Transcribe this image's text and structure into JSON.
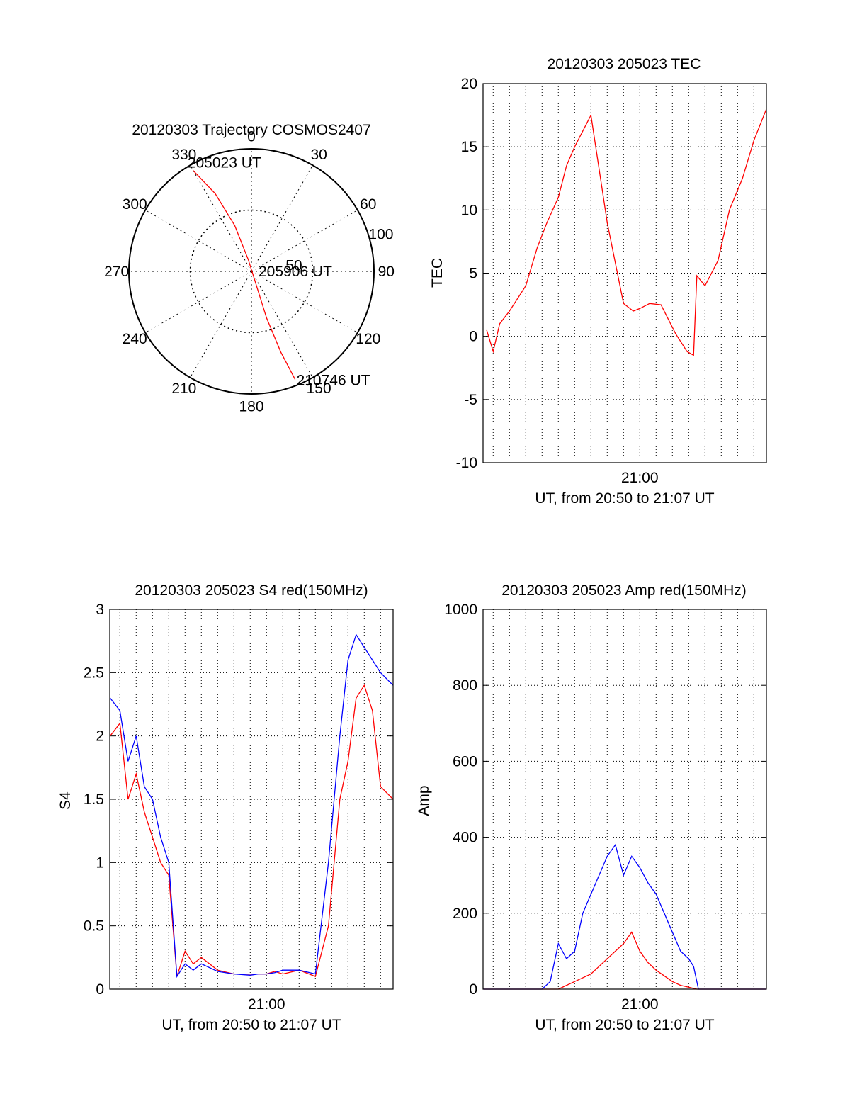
{
  "chart_data": [
    {
      "id": "polar",
      "type": "polar",
      "title": "20120303 Trajectory COSMOS2407",
      "angle_labels": [
        "0",
        "30",
        "60",
        "90",
        "120",
        "150",
        "180",
        "210",
        "240",
        "270",
        "300",
        "330"
      ],
      "radius_labels": [
        "50",
        "100"
      ],
      "r_max": 100,
      "series": [
        {
          "name": "trajectory",
          "color": "#ff0000",
          "points": [
            [
              -30,
              95
            ],
            [
              -25,
              70
            ],
            [
              -20,
              40
            ],
            [
              -15,
              10
            ],
            [
              160,
              10
            ],
            [
              162,
              40
            ],
            [
              160,
              70
            ],
            [
              158,
              95
            ]
          ]
        }
      ],
      "annotations": [
        {
          "text": "205023 UT",
          "at": [
            -30,
            95
          ]
        },
        {
          "text": "205906 UT",
          "at": [
            0,
            0
          ]
        },
        {
          "text": "210746 UT",
          "at": [
            158,
            95
          ]
        }
      ]
    },
    {
      "id": "tec",
      "type": "line",
      "title": "20120303 205023 TEC",
      "xlabel": "UT, from 20:50 to 21:07 UT",
      "ylabel": "TEC",
      "xlim": [
        50.38,
        67.77
      ],
      "ylim": [
        -10,
        20
      ],
      "yticks": [
        "-10",
        "-5",
        "0",
        "5",
        "10",
        "15",
        "20"
      ],
      "xticks": [
        {
          "value": 60,
          "label": "21:00"
        }
      ],
      "series": [
        {
          "name": "TEC",
          "color": "#ff0000",
          "x": [
            50.6,
            51.0,
            51.4,
            52.0,
            52.5,
            53.0,
            53.7,
            54.3,
            55.0,
            55.5,
            56.0,
            57.0,
            58.0,
            59.0,
            59.6,
            60.0,
            60.6,
            61.3,
            62.2,
            62.9,
            63.3,
            63.5,
            64.0,
            64.8,
            65.5,
            66.3,
            67.0,
            67.77
          ],
          "y": [
            0.5,
            -1.2,
            1.0,
            2.0,
            3.0,
            4.0,
            7.0,
            9.0,
            11.0,
            13.5,
            15.0,
            17.5,
            9.0,
            2.6,
            2.0,
            2.2,
            2.6,
            2.5,
            0.2,
            -1.2,
            -1.5,
            4.8,
            4.0,
            6.0,
            10.0,
            12.5,
            15.5,
            18.0
          ]
        }
      ]
    },
    {
      "id": "s4",
      "type": "line",
      "title": "20120303 205023 S4 red(150MHz)",
      "xlabel": "UT, from 20:50 to 21:07 UT",
      "ylabel": "S4",
      "xlim": [
        50.38,
        67.77
      ],
      "ylim": [
        0,
        3
      ],
      "yticks": [
        "0",
        "0.5",
        "1",
        "1.5",
        "2",
        "2.5",
        "3"
      ],
      "xticks": [
        {
          "value": 60,
          "label": "21:00"
        }
      ],
      "series": [
        {
          "name": "red",
          "color": "#ff0000",
          "x": [
            50.4,
            51.0,
            51.5,
            52.0,
            52.5,
            53.0,
            53.5,
            54.0,
            54.5,
            55.0,
            55.5,
            56.0,
            57.0,
            58.0,
            59.0,
            59.5,
            60.0,
            60.5,
            61.0,
            62.0,
            63.0,
            63.8,
            64.5,
            65.0,
            65.5,
            66.0,
            66.5,
            67.0,
            67.77
          ],
          "y": [
            2.0,
            2.1,
            1.5,
            1.7,
            1.4,
            1.2,
            1.0,
            0.9,
            0.1,
            0.3,
            0.2,
            0.25,
            0.15,
            0.12,
            0.12,
            0.12,
            0.12,
            0.14,
            0.12,
            0.15,
            0.1,
            0.5,
            1.5,
            1.8,
            2.3,
            2.4,
            2.2,
            1.6,
            1.5
          ]
        },
        {
          "name": "blue",
          "color": "#0000ff",
          "x": [
            50.4,
            51.0,
            51.5,
            52.0,
            52.5,
            53.0,
            53.5,
            54.0,
            54.5,
            55.0,
            55.5,
            56.0,
            57.0,
            58.0,
            59.0,
            59.5,
            60.0,
            60.5,
            61.0,
            62.0,
            63.0,
            63.8,
            64.5,
            65.0,
            65.5,
            66.0,
            66.5,
            67.0,
            67.77
          ],
          "y": [
            2.3,
            2.2,
            1.8,
            2.0,
            1.6,
            1.5,
            1.2,
            1.0,
            0.1,
            0.2,
            0.15,
            0.2,
            0.14,
            0.12,
            0.11,
            0.12,
            0.12,
            0.13,
            0.15,
            0.15,
            0.12,
            1.0,
            2.0,
            2.6,
            2.8,
            2.7,
            2.6,
            2.5,
            2.4
          ]
        }
      ]
    },
    {
      "id": "amp",
      "type": "line",
      "title": "20120303 205023 Amp red(150MHz)",
      "xlabel": "UT, from 20:50 to 21:07 UT",
      "ylabel": "Amp",
      "xlim": [
        50.38,
        67.77
      ],
      "ylim": [
        0,
        1000
      ],
      "yticks": [
        "0",
        "200",
        "400",
        "600",
        "800",
        "1000"
      ],
      "xticks": [
        {
          "value": 60,
          "label": "21:00"
        }
      ],
      "series": [
        {
          "name": "red",
          "color": "#ff0000",
          "x": [
            50.4,
            54.0,
            55.0,
            55.5,
            56.0,
            57.0,
            57.5,
            58.0,
            58.5,
            59.0,
            59.5,
            60.0,
            60.5,
            61.0,
            62.0,
            62.5,
            63.0,
            63.5,
            67.77
          ],
          "y": [
            0,
            0,
            0,
            10,
            20,
            40,
            60,
            80,
            100,
            120,
            150,
            100,
            70,
            50,
            20,
            10,
            5,
            0,
            0
          ]
        },
        {
          "name": "blue",
          "color": "#0000ff",
          "x": [
            50.4,
            54.0,
            54.5,
            55.0,
            55.5,
            56.0,
            56.5,
            57.0,
            57.5,
            58.0,
            58.5,
            59.0,
            59.5,
            60.0,
            60.5,
            61.0,
            61.5,
            62.0,
            62.5,
            63.0,
            63.3,
            63.6,
            67.77
          ],
          "y": [
            0,
            0,
            20,
            120,
            80,
            100,
            200,
            250,
            300,
            350,
            380,
            300,
            350,
            320,
            280,
            250,
            200,
            150,
            100,
            80,
            60,
            0,
            0
          ]
        }
      ]
    }
  ]
}
